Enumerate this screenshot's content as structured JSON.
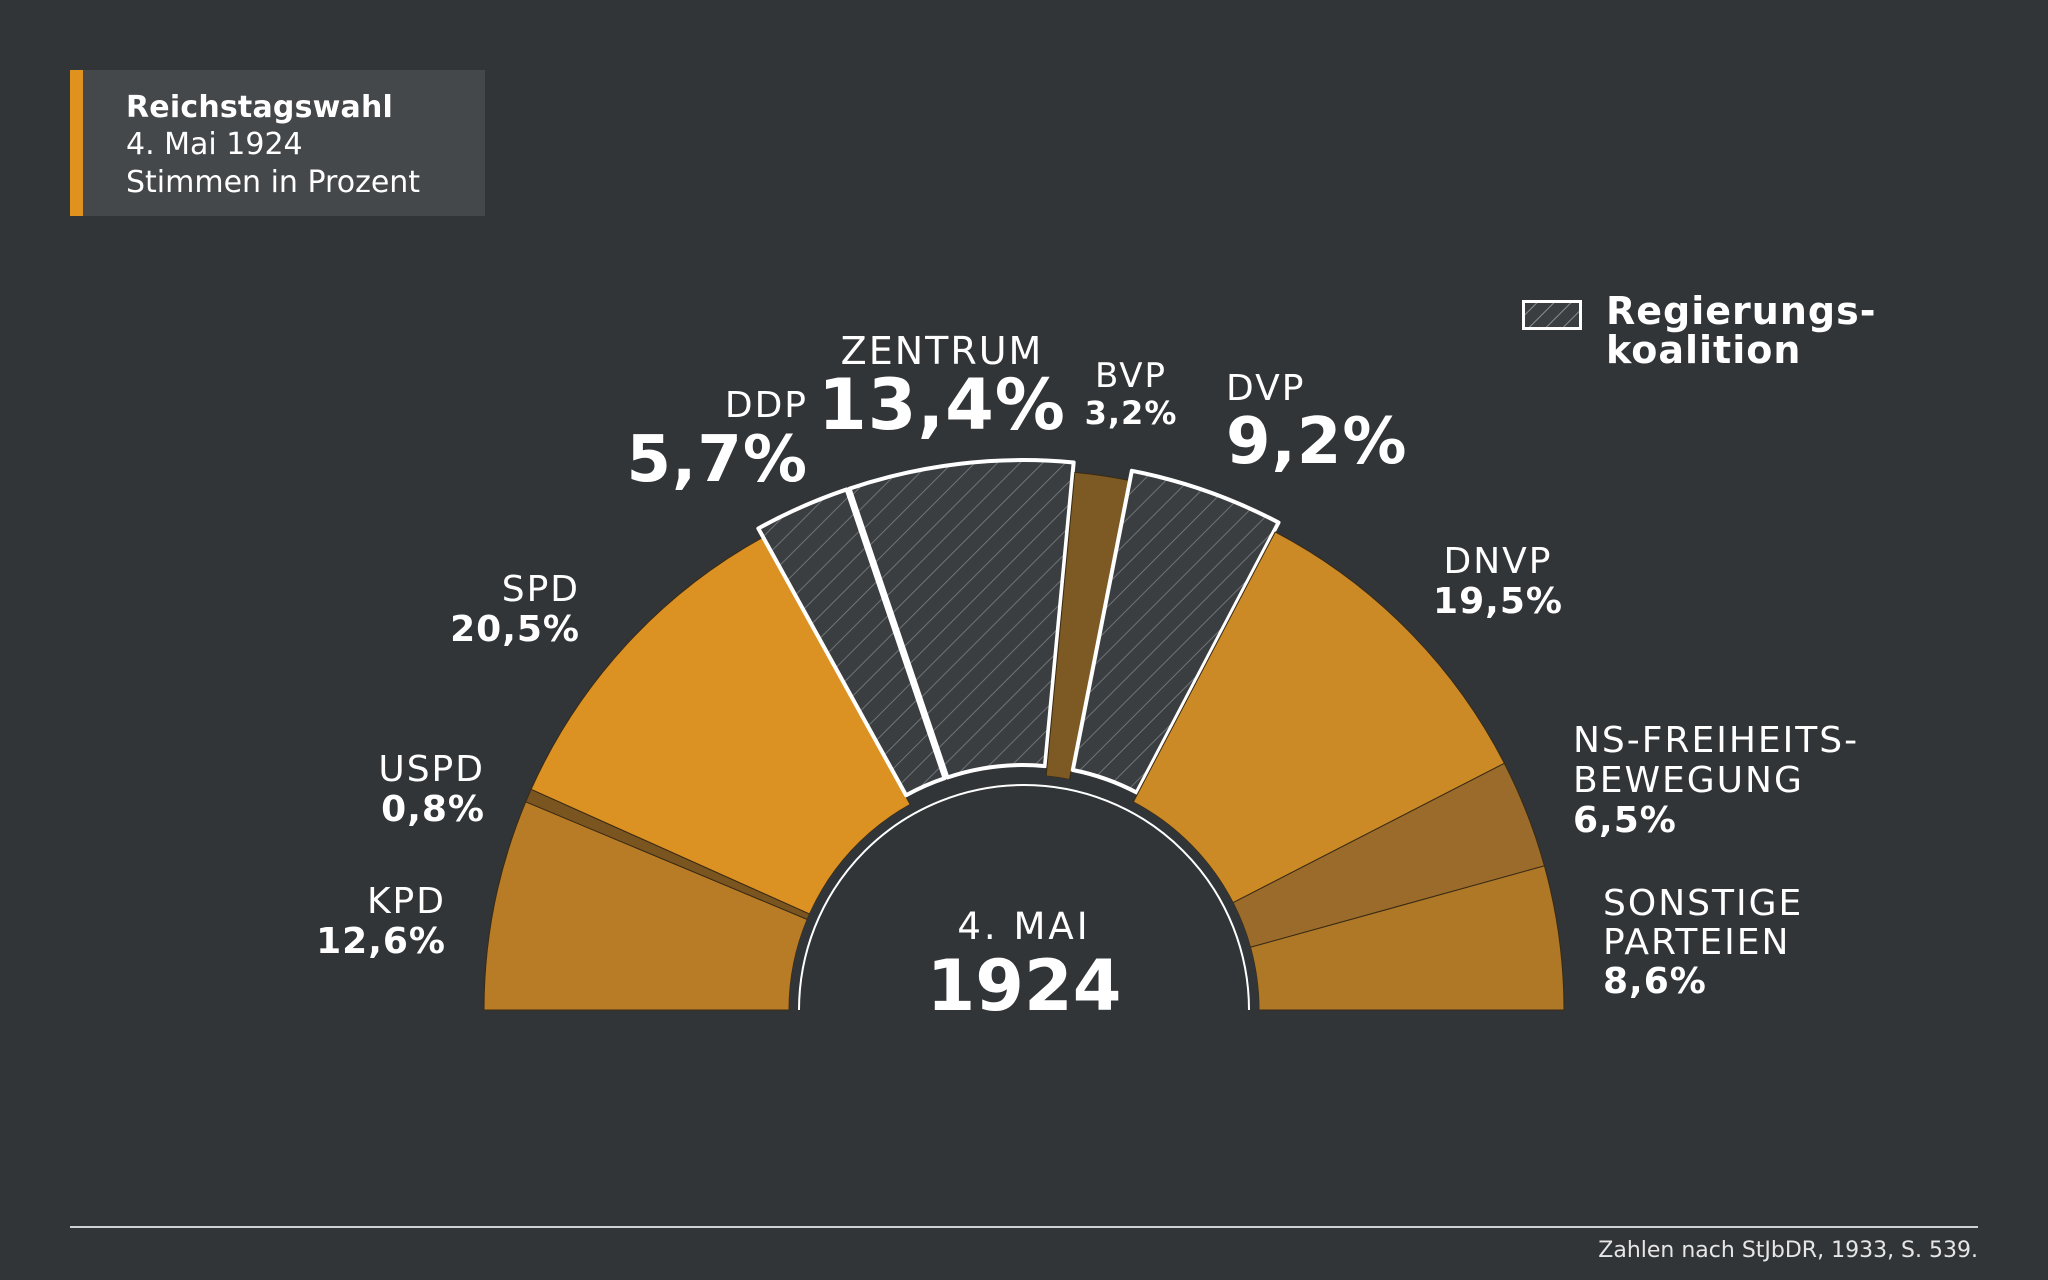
{
  "title_box": {
    "title": "Reichstagswahl",
    "date": "4. Mai 1924",
    "subtitle": "Stimmen in Prozent"
  },
  "legend": {
    "line1": "Regierungs-",
    "line2": "koalition"
  },
  "center": {
    "date": "4. MAI",
    "year": "1924"
  },
  "source": "Zahlen nach StJbDR, 1933, S. 539.",
  "colors": {
    "background": "#313538",
    "accent": "#e0921f",
    "coalition_fill": "#3a3e41",
    "coalition_hatch": "#6f7376",
    "outline": "#ffffff"
  },
  "chart_data": {
    "type": "pie",
    "variant": "semicircle",
    "title": "Reichstagswahl",
    "subtitle": "Stimmen in Prozent",
    "slices": [
      {
        "name": "KPD",
        "label": "KPD",
        "value_label": "12,6%",
        "value": 12.6,
        "coalition": false,
        "color": "#b97c26"
      },
      {
        "name": "USPD",
        "label": "USPD",
        "value_label": "0,8%",
        "value": 0.8,
        "coalition": false,
        "color": "#7a5520"
      },
      {
        "name": "SPD",
        "label": "SPD",
        "value_label": "20,5%",
        "value": 20.5,
        "coalition": false,
        "color": "#dc9123"
      },
      {
        "name": "DDP",
        "label": "DDP",
        "value_label": "5,7%",
        "value": 5.7,
        "coalition": true,
        "color": "#3a3e41"
      },
      {
        "name": "ZENTRUM",
        "label": "ZENTRUM",
        "value_label": "13,4%",
        "value": 13.4,
        "coalition": true,
        "color": "#3a3e41"
      },
      {
        "name": "BVP",
        "label": "BVP",
        "value_label": "3,2%",
        "value": 3.2,
        "coalition": false,
        "color": "#7d5a24"
      },
      {
        "name": "DVP",
        "label": "DVP",
        "value_label": "9,2%",
        "value": 9.2,
        "coalition": true,
        "color": "#3a3e41"
      },
      {
        "name": "DNVP",
        "label": "DNVP",
        "value_label": "19,5%",
        "value": 19.5,
        "coalition": false,
        "color": "#cb8a26"
      },
      {
        "name": "NS-FREIHEITS-BEWEGUNG",
        "label": [
          "NS-FREIHEITS-",
          "BEWEGUNG"
        ],
        "value_label": "6,5%",
        "value": 6.5,
        "coalition": false,
        "color": "#9a6b2a"
      },
      {
        "name": "SONSTIGE PARTEIEN",
        "label": [
          "SONSTIGE",
          "PARTEIEN"
        ],
        "value_label": "8,6%",
        "value": 8.6,
        "coalition": false,
        "color": "#ae7827"
      }
    ]
  }
}
